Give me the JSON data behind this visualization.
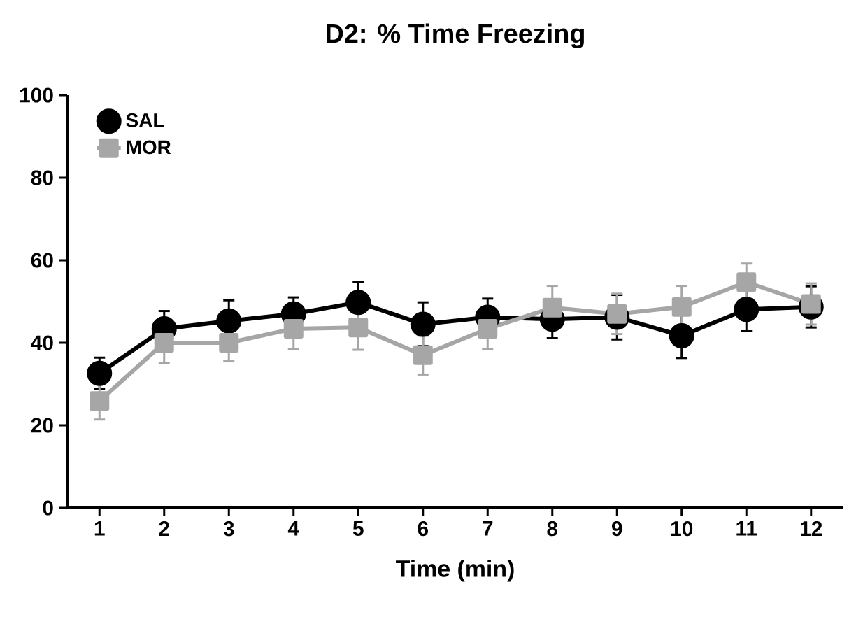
{
  "chart_data": {
    "type": "line",
    "title": "D2: % Time Freezing",
    "xlabel": "Time (min)",
    "categories": [
      "1",
      "2",
      "3",
      "4",
      "5",
      "6",
      "7",
      "8",
      "9",
      "10",
      "11",
      "12"
    ],
    "ylim": [
      0,
      100
    ],
    "yticks": [
      0,
      20,
      40,
      60,
      80,
      100
    ],
    "grid": false,
    "legend": "top left",
    "series": [
      {
        "name": "SAL",
        "color": "#000000",
        "marker": "circle",
        "values": [
          32.6,
          43.4,
          45.3,
          47,
          49.8,
          44.5,
          46.2,
          45.7,
          46.2,
          41.7,
          48.1,
          48.7
        ],
        "errors": [
          3.8,
          4.3,
          5,
          4,
          5,
          5.3,
          4.5,
          4.6,
          5.4,
          5.4,
          5.3,
          5
        ]
      },
      {
        "name": "MOR",
        "color": "#a6a6a6",
        "marker": "square",
        "values": [
          25.9,
          40,
          40,
          43.4,
          43.7,
          37,
          43.4,
          48.5,
          47,
          48.7,
          54.7,
          49.4
        ],
        "errors": [
          4.5,
          5,
          4.5,
          5,
          5.4,
          4.7,
          4.9,
          5.3,
          4.9,
          5.1,
          4.5,
          5
        ]
      }
    ]
  }
}
